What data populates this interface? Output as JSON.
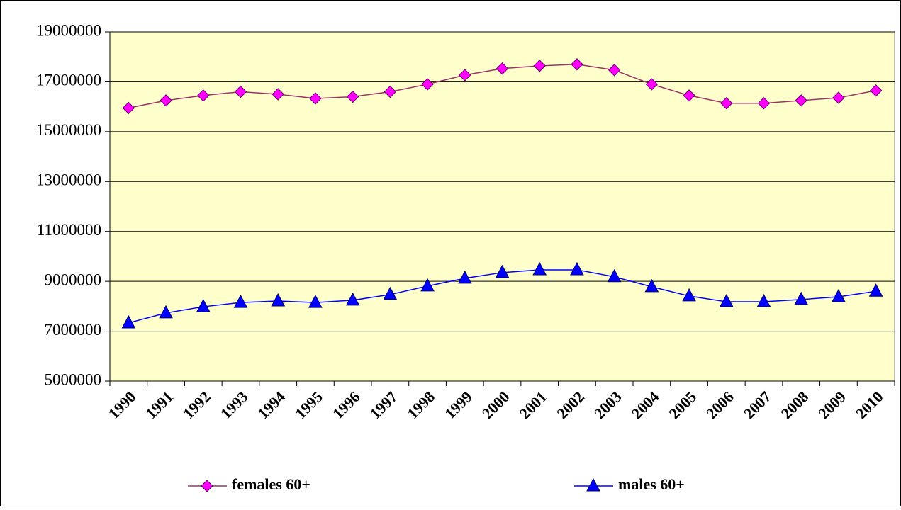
{
  "chart_data": {
    "type": "line",
    "categories": [
      "1990",
      "1991",
      "1992",
      "1993",
      "1994",
      "1995",
      "1996",
      "1997",
      "1998",
      "1999",
      "2000",
      "2001",
      "2002",
      "2003",
      "2004",
      "2005",
      "2006",
      "2007",
      "2008",
      "2009",
      "2010"
    ],
    "series": [
      {
        "name": "females 60+",
        "color": "#993366",
        "marker_color": "#ff00ff",
        "marker": "diamond",
        "values": [
          15950000,
          16250000,
          16450000,
          16600000,
          16500000,
          16330000,
          16400000,
          16600000,
          16900000,
          17270000,
          17530000,
          17640000,
          17700000,
          17470000,
          16900000,
          16450000,
          16140000,
          16140000,
          16250000,
          16360000,
          16650000
        ]
      },
      {
        "name": "males 60+",
        "color": "#0000ff",
        "marker_color": "#0000ff",
        "marker": "triangle",
        "values": [
          7330000,
          7730000,
          7980000,
          8150000,
          8210000,
          8150000,
          8240000,
          8470000,
          8810000,
          9120000,
          9350000,
          9460000,
          9460000,
          9180000,
          8780000,
          8410000,
          8180000,
          8180000,
          8270000,
          8380000,
          8600000
        ]
      }
    ],
    "ylim": [
      5000000,
      19000000
    ],
    "yticks": [
      5000000,
      7000000,
      9000000,
      11000000,
      13000000,
      15000000,
      17000000,
      19000000
    ],
    "grid": true,
    "plot_background": "#ffffcc",
    "legend": "bottom"
  }
}
